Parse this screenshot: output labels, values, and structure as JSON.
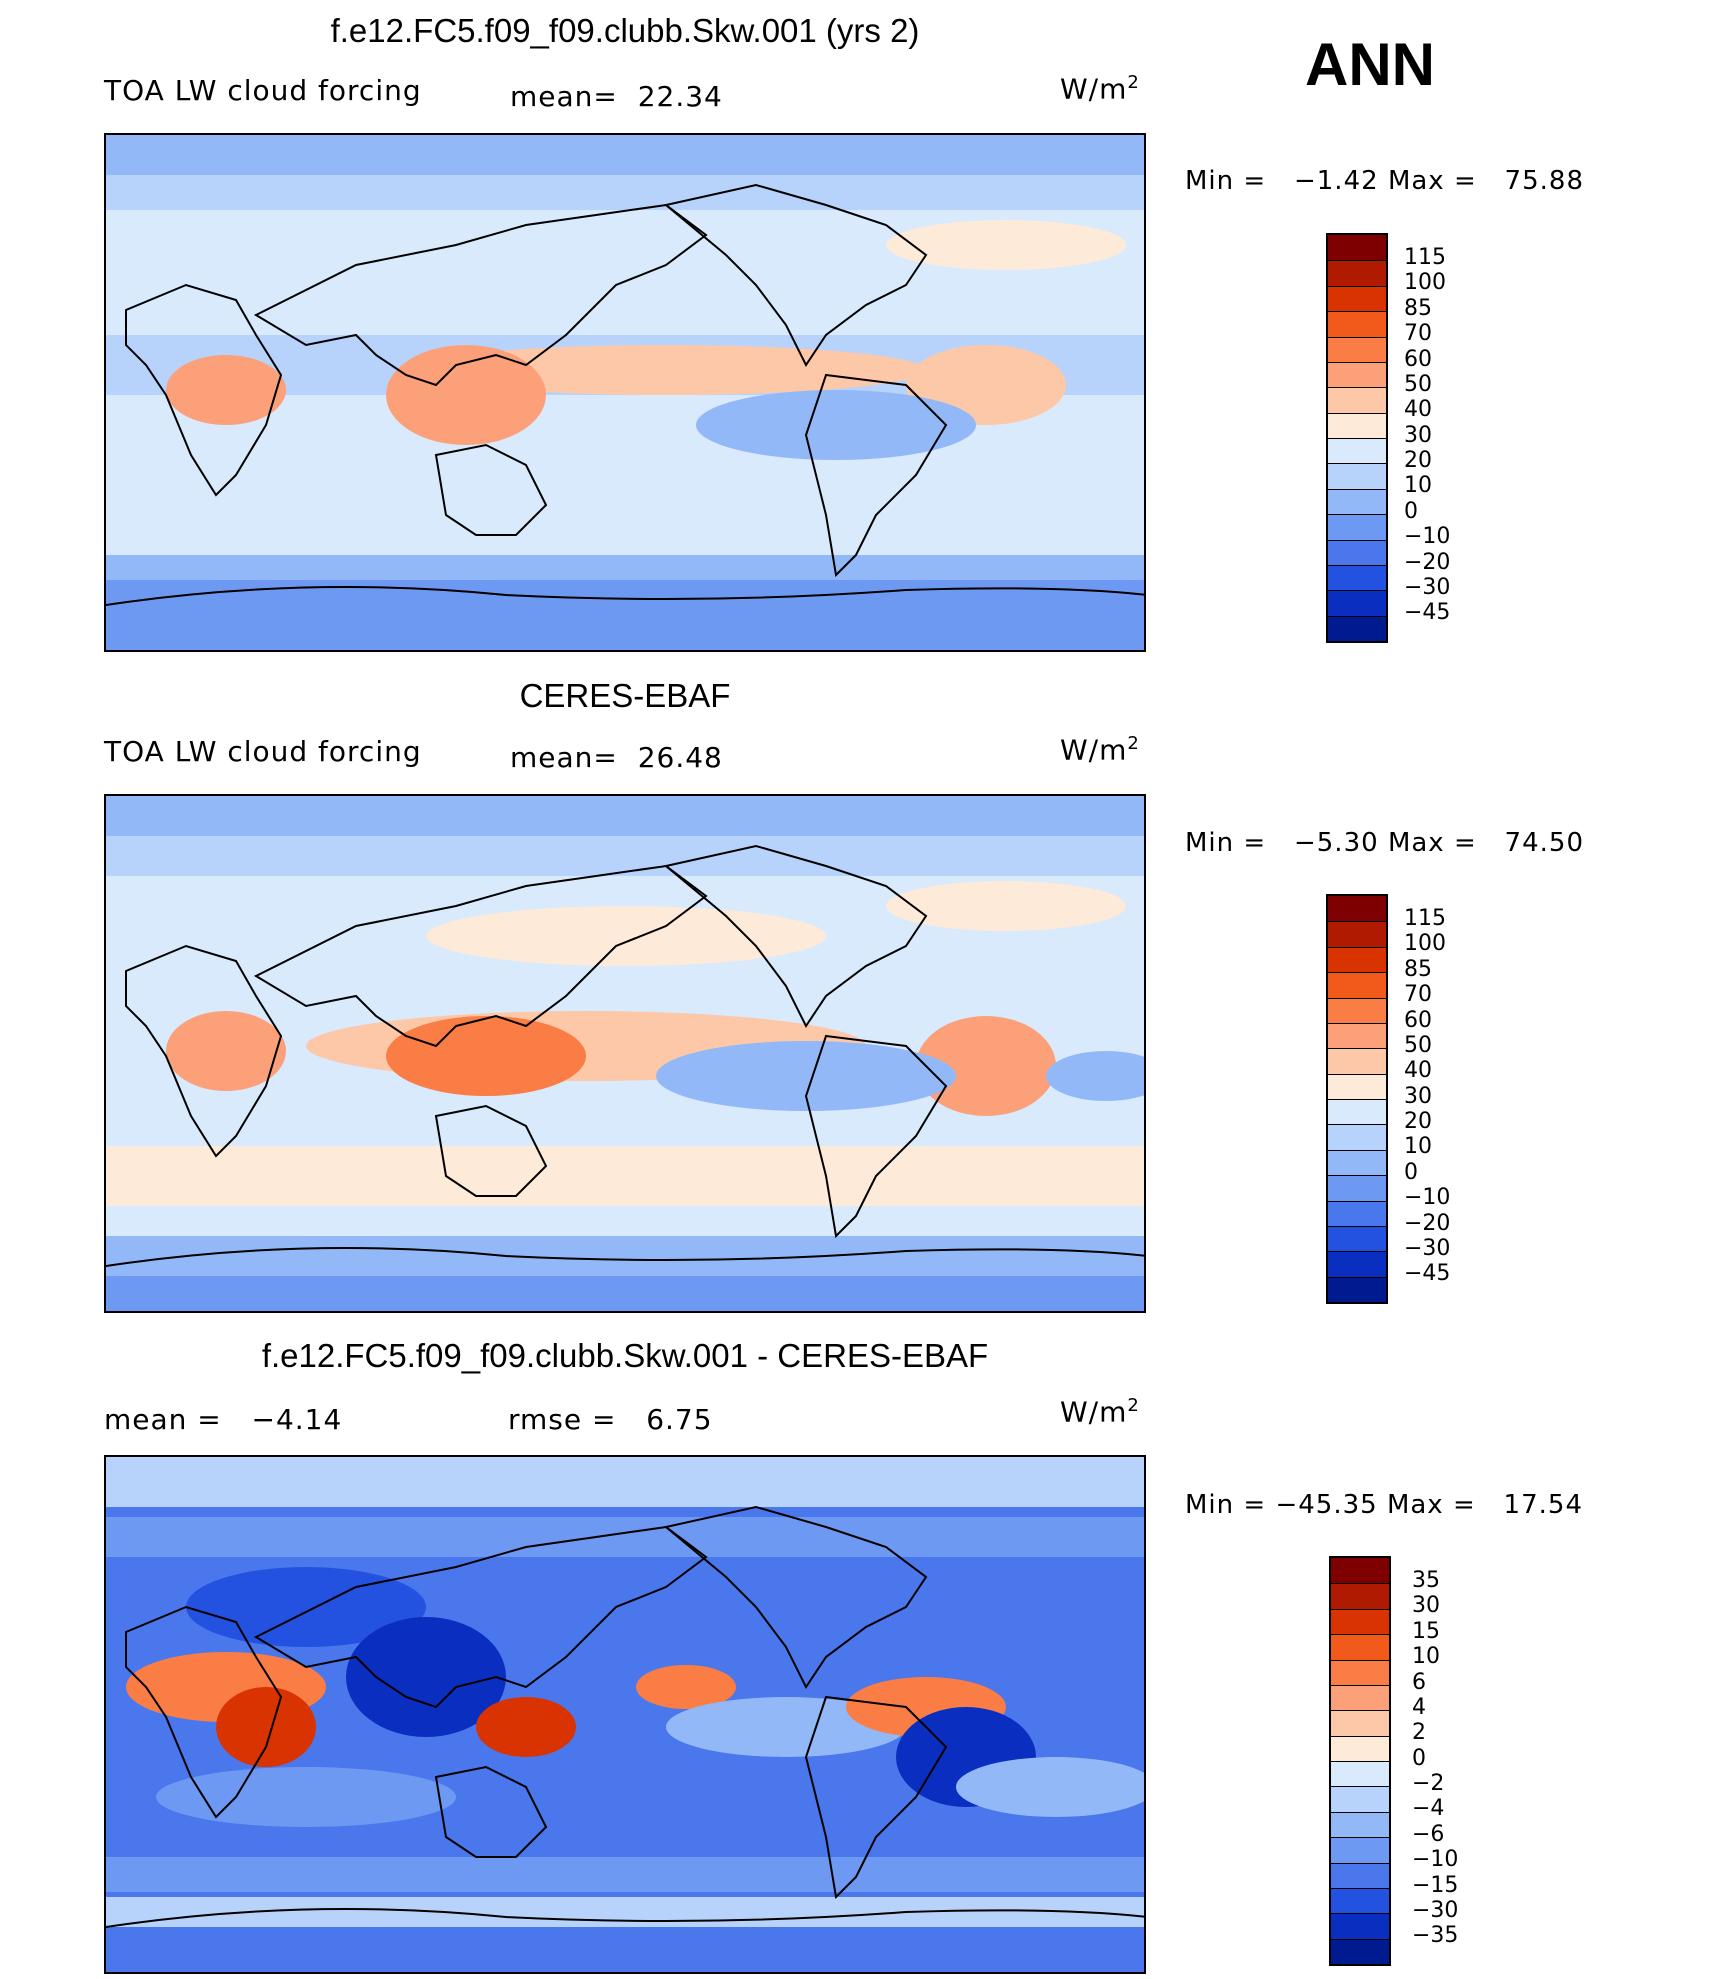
{
  "season": "ANN",
  "panels": [
    {
      "id": "model",
      "title": "f.e12.FC5.f09_f09.clubb.Skw.001 (yrs 2)",
      "left_label": "TOA LW cloud forcing",
      "mid_label": "mean=",
      "mid_value": "22.34",
      "units": "W/m",
      "units_sup": "2",
      "min_label": "Min =",
      "min_value": "−1.42",
      "max_label": "Max =",
      "max_value": "75.88",
      "levels": [
        "115",
        "100",
        "85",
        "70",
        "60",
        "50",
        "40",
        "30",
        "20",
        "10",
        "0",
        "−10",
        "−20",
        "−30",
        "−45"
      ]
    },
    {
      "id": "obs",
      "title": "CERES-EBAF",
      "left_label": "TOA LW cloud forcing",
      "mid_label": "mean=",
      "mid_value": "26.48",
      "units": "W/m",
      "units_sup": "2",
      "min_label": "Min =",
      "min_value": "−5.30",
      "max_label": "Max =",
      "max_value": "74.50",
      "levels": [
        "115",
        "100",
        "85",
        "70",
        "60",
        "50",
        "40",
        "30",
        "20",
        "10",
        "0",
        "−10",
        "−20",
        "−30",
        "−45"
      ]
    },
    {
      "id": "diff",
      "title": "f.e12.FC5.f09_f09.clubb.Skw.001 - CERES-EBAF",
      "left_label": "mean =",
      "left_value": "−4.14",
      "mid_label": "rmse =",
      "mid_value": "6.75",
      "units": "W/m",
      "units_sup": "2",
      "min_label": "Min =",
      "min_value": "−45.35",
      "max_label": "Max =",
      "max_value": "17.54",
      "levels": [
        "35",
        "30",
        "15",
        "10",
        "6",
        "4",
        "2",
        "0",
        "−2",
        "−4",
        "−6",
        "−10",
        "−15",
        "−30",
        "−35"
      ]
    }
  ],
  "colorbar_colors": [
    "#7f0000",
    "#b01a00",
    "#d83300",
    "#f25a1c",
    "#fa7d45",
    "#fca07a",
    "#fdc8a8",
    "#feead8",
    "#d9eafd",
    "#b7d3fb",
    "#93b8f8",
    "#6e99f2",
    "#4a78ec",
    "#2452e0",
    "#0a2fc0",
    "#001a90"
  ]
}
